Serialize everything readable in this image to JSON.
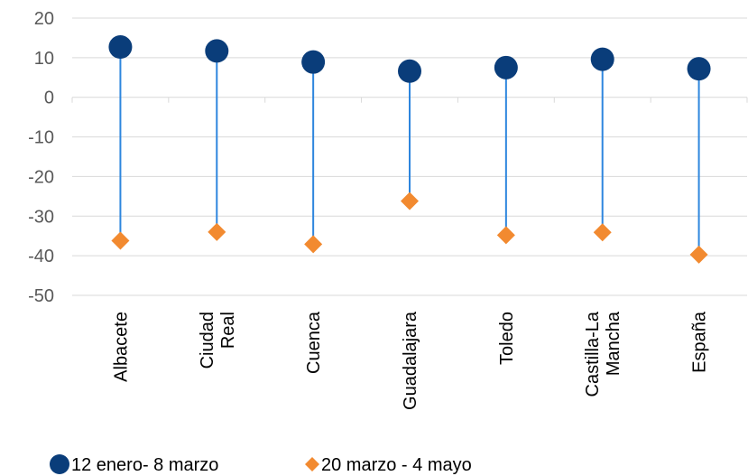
{
  "chart_data": {
    "type": "scatter",
    "categories": [
      [
        "Albacete"
      ],
      [
        "Ciudad",
        "Real"
      ],
      [
        "Cuenca"
      ],
      [
        "Guadalajara"
      ],
      [
        "Toledo"
      ],
      [
        "Castilla-La",
        "Mancha"
      ],
      [
        "España"
      ]
    ],
    "series": [
      {
        "name": "12 enero- 8 marzo",
        "values": [
          12.7,
          11.7,
          8.9,
          6.6,
          7.5,
          9.6,
          7.2
        ],
        "color": "#0A3D7A",
        "marker": "circle"
      },
      {
        "name": "20 marzo - 4 mayo",
        "values": [
          -36.2,
          -34.0,
          -37.1,
          -26.2,
          -34.8,
          -34.1,
          -39.7
        ],
        "color": "#F28A30",
        "marker": "diamond"
      }
    ],
    "connector_color": "#2E86DE",
    "ylim": [
      -50,
      20
    ],
    "yticks": [
      "20",
      "10",
      "0",
      "-10",
      "-20",
      "-30",
      "-40",
      "-50"
    ],
    "grid": true,
    "legend_position": "bottom-left"
  }
}
